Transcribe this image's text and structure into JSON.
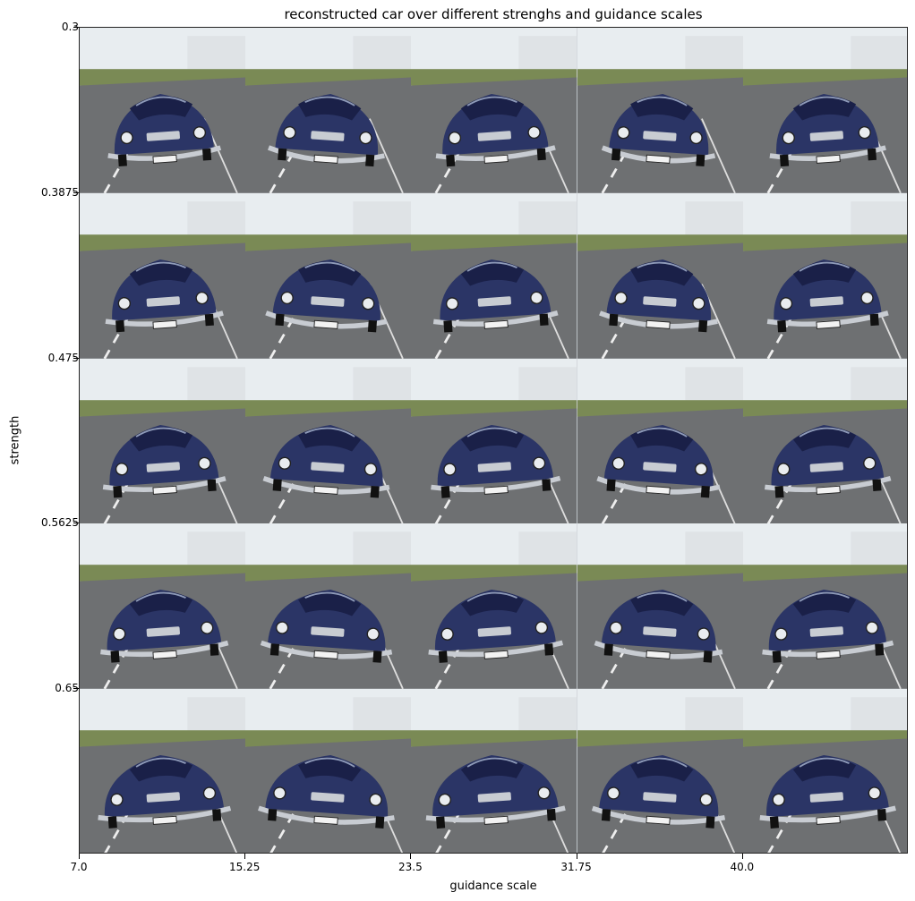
{
  "chart_data": {
    "type": "image_grid",
    "title": "reconstructed car over different strenghs and guidance scales",
    "xlabel": "guidance scale",
    "ylabel": "strength",
    "x_ticks": [
      "7.0",
      "15.25",
      "23.5",
      "31.75",
      "40.0"
    ],
    "y_ticks": [
      "0.3",
      "0.3875",
      "0.475",
      "0.5625",
      "0.65"
    ],
    "rows": 5,
    "cols": 5,
    "grid": false
  },
  "colors": {
    "car_body": "#2b3566",
    "car_body_dark": "#1a2048",
    "road": "#6e7072",
    "sky": "#e8edf0",
    "grass": "#7a8a55",
    "chrome": "#c8ccd2"
  }
}
